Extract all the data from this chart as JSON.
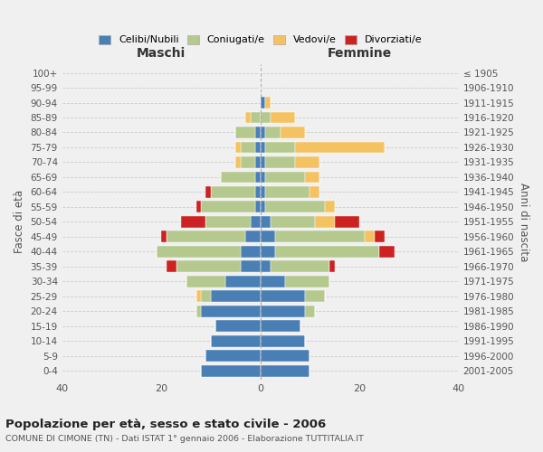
{
  "age_groups": [
    "100+",
    "95-99",
    "90-94",
    "85-89",
    "80-84",
    "75-79",
    "70-74",
    "65-69",
    "60-64",
    "55-59",
    "50-54",
    "45-49",
    "40-44",
    "35-39",
    "30-34",
    "25-29",
    "20-24",
    "15-19",
    "10-14",
    "5-9",
    "0-4"
  ],
  "birth_years": [
    "≤ 1905",
    "1906-1910",
    "1911-1915",
    "1916-1920",
    "1921-1925",
    "1926-1930",
    "1931-1935",
    "1936-1940",
    "1941-1945",
    "1946-1950",
    "1951-1955",
    "1956-1960",
    "1961-1965",
    "1966-1970",
    "1971-1975",
    "1976-1980",
    "1981-1985",
    "1986-1990",
    "1991-1995",
    "1996-2000",
    "2001-2005"
  ],
  "colors": {
    "celibe": "#4a7fb5",
    "coniugato": "#b5c98e",
    "vedovo": "#f5c262",
    "divorziato": "#cc2222"
  },
  "males": {
    "celibe": [
      0,
      0,
      0,
      0,
      1,
      1,
      1,
      1,
      1,
      1,
      2,
      3,
      4,
      4,
      7,
      10,
      12,
      9,
      10,
      11,
      12
    ],
    "coniugato": [
      0,
      0,
      0,
      2,
      4,
      3,
      3,
      7,
      9,
      11,
      9,
      16,
      17,
      13,
      8,
      2,
      1,
      0,
      0,
      0,
      0
    ],
    "vedovo": [
      0,
      0,
      0,
      1,
      0,
      1,
      1,
      0,
      0,
      0,
      0,
      0,
      0,
      0,
      0,
      1,
      0,
      0,
      0,
      0,
      0
    ],
    "divorziato": [
      0,
      0,
      0,
      0,
      0,
      0,
      0,
      0,
      1,
      1,
      5,
      1,
      0,
      2,
      0,
      0,
      0,
      0,
      0,
      0,
      0
    ]
  },
  "females": {
    "nubile": [
      0,
      0,
      1,
      0,
      1,
      1,
      1,
      1,
      1,
      1,
      2,
      3,
      3,
      2,
      5,
      9,
      9,
      8,
      9,
      10,
      10
    ],
    "coniugata": [
      0,
      0,
      0,
      2,
      3,
      6,
      6,
      8,
      9,
      12,
      9,
      18,
      21,
      12,
      9,
      4,
      2,
      0,
      0,
      0,
      0
    ],
    "vedova": [
      0,
      0,
      1,
      5,
      5,
      18,
      5,
      3,
      2,
      2,
      4,
      2,
      0,
      0,
      0,
      0,
      0,
      0,
      0,
      0,
      0
    ],
    "divorziata": [
      0,
      0,
      0,
      0,
      0,
      0,
      0,
      0,
      0,
      0,
      5,
      2,
      3,
      1,
      0,
      0,
      0,
      0,
      0,
      0,
      0
    ]
  },
  "xlim": 40,
  "title": "Popolazione per età, sesso e stato civile - 2006",
  "subtitle": "COMUNE DI CIMONE (TN) - Dati ISTAT 1° gennaio 2006 - Elaborazione TUTTITALIA.IT",
  "ylabel_left": "Fasce di età",
  "ylabel_right": "Anni di nascita",
  "xlabel_left": "Maschi",
  "xlabel_right": "Femmine",
  "background_color": "#f0f0f0",
  "legend_labels": [
    "Celibi/Nubili",
    "Coniugati/e",
    "Vedovi/e",
    "Divorziati/e"
  ]
}
